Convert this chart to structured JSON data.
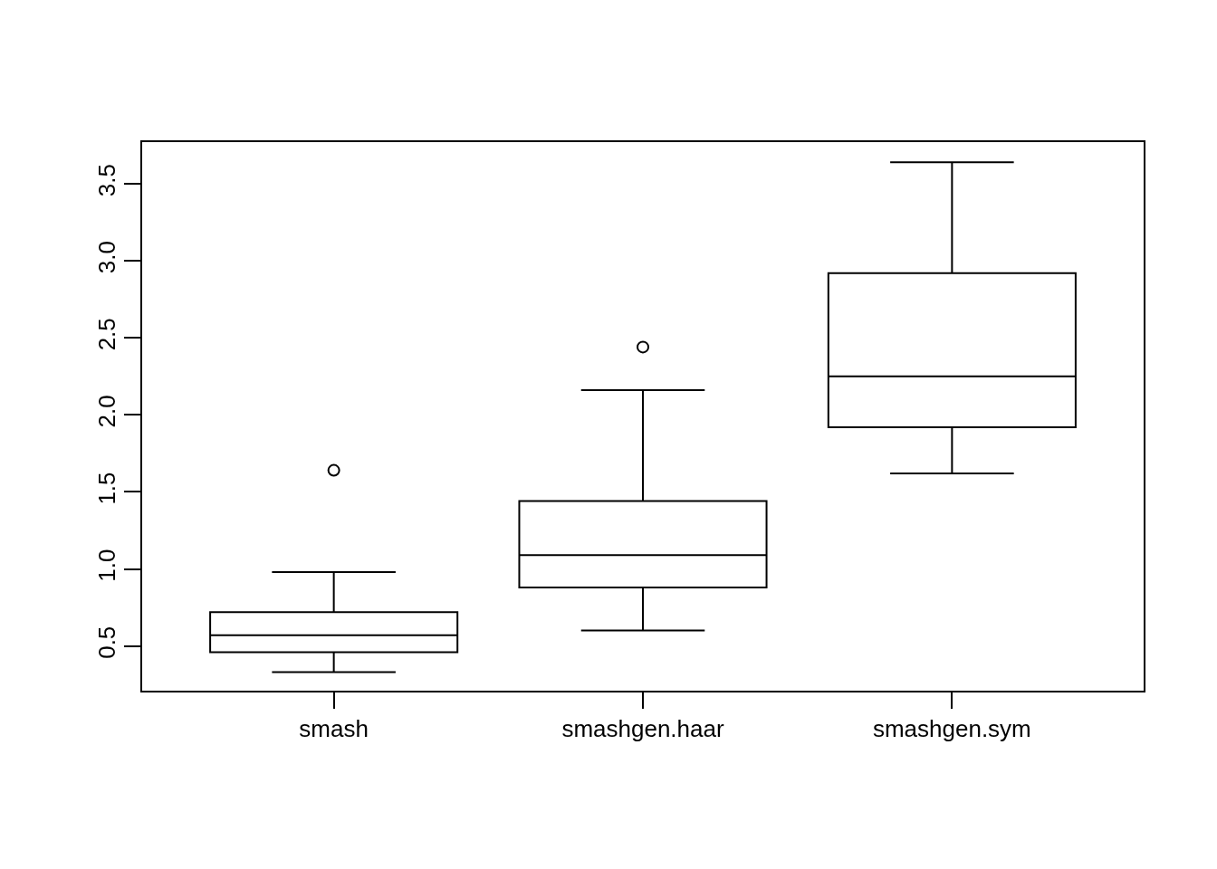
{
  "chart_data": {
    "type": "box",
    "categories": [
      "smash",
      "smashgen.haar",
      "smashgen.sym"
    ],
    "boxes": [
      {
        "low": 0.33,
        "q1": 0.46,
        "median": 0.57,
        "q3": 0.72,
        "high": 0.98,
        "outliers": [
          1.64
        ]
      },
      {
        "low": 0.6,
        "q1": 0.88,
        "median": 1.09,
        "q3": 1.44,
        "high": 2.16,
        "outliers": [
          2.44
        ]
      },
      {
        "low": 1.62,
        "q1": 1.92,
        "median": 2.25,
        "q3": 2.92,
        "high": 3.64
      }
    ],
    "color": "#000000",
    "ylim": [
      0.21,
      3.77
    ],
    "yticks": [
      0.5,
      {
        "value": 1,
        "label": "1.0"
      },
      1.5,
      {
        "value": 2,
        "label": "2.0"
      },
      2.5,
      {
        "value": 3,
        "label": "3.0"
      },
      3.5
    ]
  }
}
